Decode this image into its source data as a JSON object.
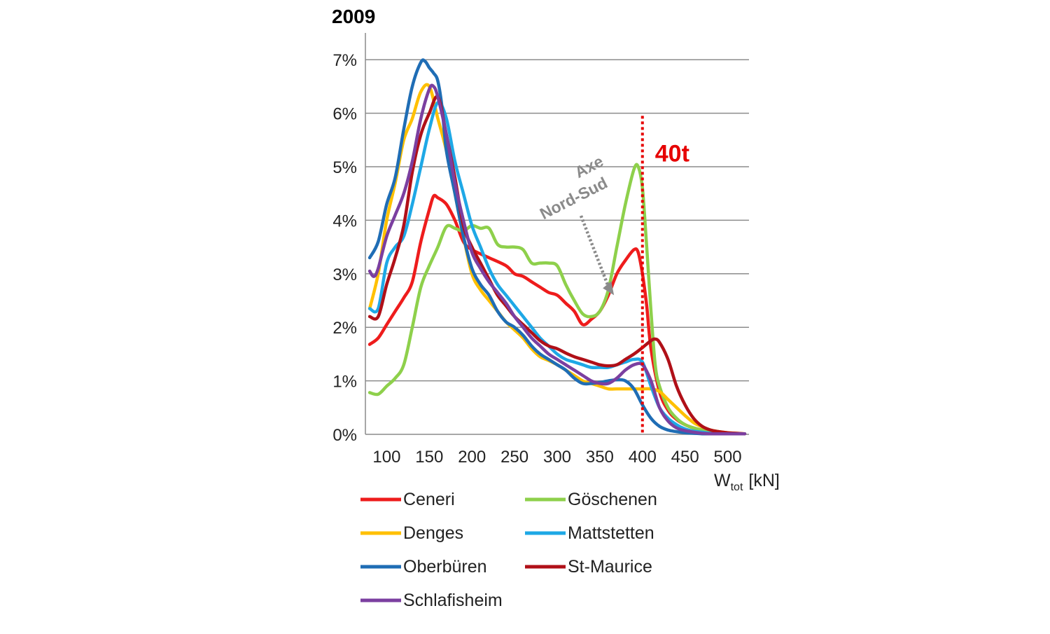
{
  "chart_data": {
    "type": "line",
    "title": "2009",
    "xlabel_main": "W",
    "xlabel_sub": "tot",
    "xlabel_unit": "[kN]",
    "xlim": [
      75,
      525
    ],
    "ylim": [
      0,
      7.5
    ],
    "y_ticks": [
      {
        "value": 0,
        "label": "0%"
      },
      {
        "value": 1,
        "label": "1%"
      },
      {
        "value": 2,
        "label": "2%"
      },
      {
        "value": 3,
        "label": "3%"
      },
      {
        "value": 4,
        "label": "4%"
      },
      {
        "value": 5,
        "label": "5%"
      },
      {
        "value": 6,
        "label": "6%"
      },
      {
        "value": 7,
        "label": "7%"
      }
    ],
    "x_ticks": [
      {
        "value": 100,
        "label": "100"
      },
      {
        "value": 150,
        "label": "150"
      },
      {
        "value": 200,
        "label": "200"
      },
      {
        "value": 250,
        "label": "250"
      },
      {
        "value": 300,
        "label": "300"
      },
      {
        "value": 350,
        "label": "350"
      },
      {
        "value": 400,
        "label": "400"
      },
      {
        "value": 450,
        "label": "450"
      },
      {
        "value": 500,
        "label": "500"
      }
    ],
    "grid": "horizontal",
    "legend_position": "bottom",
    "reference_line": {
      "x": 400,
      "label": "40t",
      "color": "#e60000"
    },
    "annotation": {
      "line1": "Axe",
      "line2": "Nord-Sud",
      "points_to": [
        365,
        2.6
      ]
    },
    "series": [
      {
        "name": "Ceneri",
        "color": "#ee1c1c",
        "x": [
          80,
          90,
          100,
          110,
          120,
          130,
          140,
          150,
          155,
          160,
          170,
          180,
          190,
          200,
          220,
          240,
          250,
          260,
          270,
          280,
          290,
          300,
          310,
          320,
          330,
          340,
          350,
          360,
          370,
          380,
          390,
          395,
          400,
          405,
          410,
          420,
          430,
          440,
          450,
          460,
          470,
          480,
          490,
          500,
          510,
          520
        ],
        "y": [
          1.68,
          1.8,
          2.05,
          2.3,
          2.55,
          2.85,
          3.6,
          4.2,
          4.45,
          4.42,
          4.3,
          4.0,
          3.6,
          3.45,
          3.3,
          3.15,
          3.0,
          2.95,
          2.85,
          2.75,
          2.65,
          2.6,
          2.45,
          2.3,
          2.05,
          2.15,
          2.3,
          2.6,
          3.0,
          3.25,
          3.45,
          3.4,
          3.0,
          2.4,
          1.6,
          0.8,
          0.45,
          0.28,
          0.18,
          0.12,
          0.08,
          0.05,
          0.03,
          0.02,
          0.01,
          0.01
        ]
      },
      {
        "name": "Göschenen",
        "color": "#8ed04b",
        "x": [
          80,
          90,
          100,
          110,
          120,
          130,
          140,
          150,
          160,
          170,
          180,
          190,
          200,
          210,
          220,
          230,
          240,
          250,
          260,
          270,
          280,
          290,
          300,
          310,
          320,
          330,
          340,
          350,
          360,
          370,
          380,
          390,
          395,
          400,
          405,
          410,
          415,
          420,
          430,
          440,
          450,
          460,
          470,
          480,
          490,
          500,
          510,
          520
        ],
        "y": [
          0.78,
          0.75,
          0.9,
          1.05,
          1.3,
          2.0,
          2.75,
          3.15,
          3.5,
          3.88,
          3.85,
          3.8,
          3.9,
          3.85,
          3.85,
          3.55,
          3.5,
          3.5,
          3.45,
          3.2,
          3.2,
          3.2,
          3.15,
          2.8,
          2.5,
          2.25,
          2.2,
          2.3,
          2.7,
          3.5,
          4.3,
          4.95,
          5.0,
          4.6,
          3.5,
          2.3,
          1.3,
          0.9,
          0.5,
          0.3,
          0.18,
          0.12,
          0.08,
          0.05,
          0.03,
          0.02,
          0.01,
          0.01
        ]
      },
      {
        "name": "Denges",
        "color": "#ffc000",
        "x": [
          80,
          90,
          100,
          110,
          120,
          130,
          140,
          150,
          160,
          170,
          180,
          190,
          200,
          210,
          220,
          230,
          240,
          250,
          260,
          270,
          280,
          290,
          300,
          310,
          320,
          330,
          340,
          350,
          360,
          370,
          380,
          390,
          400,
          410,
          420,
          430,
          440,
          450,
          460,
          470,
          480,
          490,
          500,
          510,
          520
        ],
        "y": [
          2.35,
          3.0,
          4.0,
          4.7,
          5.5,
          5.9,
          6.4,
          6.5,
          5.9,
          5.3,
          4.5,
          3.7,
          3.0,
          2.7,
          2.5,
          2.3,
          2.1,
          1.95,
          1.8,
          1.6,
          1.45,
          1.38,
          1.3,
          1.2,
          1.1,
          1.0,
          0.95,
          0.9,
          0.85,
          0.85,
          0.85,
          0.85,
          0.85,
          0.85,
          0.8,
          0.65,
          0.5,
          0.35,
          0.22,
          0.14,
          0.08,
          0.05,
          0.03,
          0.02,
          0.01
        ]
      },
      {
        "name": "Mattstetten",
        "color": "#1ea8e6",
        "x": [
          80,
          90,
          100,
          110,
          120,
          130,
          140,
          150,
          160,
          170,
          180,
          190,
          200,
          210,
          220,
          230,
          240,
          250,
          260,
          270,
          280,
          290,
          300,
          310,
          320,
          330,
          340,
          350,
          360,
          370,
          380,
          390,
          400,
          410,
          420,
          430,
          440,
          450,
          460,
          470,
          480,
          490,
          500,
          510,
          520
        ],
        "y": [
          2.35,
          2.35,
          3.2,
          3.5,
          3.7,
          4.3,
          5.0,
          5.7,
          6.2,
          5.9,
          5.1,
          4.5,
          3.9,
          3.5,
          3.1,
          2.8,
          2.6,
          2.4,
          2.2,
          2.0,
          1.8,
          1.65,
          1.5,
          1.4,
          1.35,
          1.3,
          1.25,
          1.25,
          1.25,
          1.3,
          1.35,
          1.4,
          1.35,
          0.9,
          0.5,
          0.3,
          0.18,
          0.1,
          0.06,
          0.04,
          0.02,
          0.01,
          0.01,
          0.01,
          0.01
        ]
      },
      {
        "name": "Oberbüren",
        "color": "#1f6db5",
        "x": [
          80,
          90,
          100,
          110,
          120,
          130,
          140,
          145,
          150,
          155,
          160,
          165,
          170,
          180,
          190,
          200,
          210,
          220,
          230,
          240,
          250,
          260,
          270,
          280,
          290,
          300,
          310,
          320,
          330,
          340,
          350,
          360,
          370,
          380,
          390,
          400,
          410,
          420,
          430,
          440,
          450,
          460,
          470,
          480,
          490,
          500,
          510,
          520
        ],
        "y": [
          3.3,
          3.6,
          4.3,
          4.8,
          5.7,
          6.5,
          6.95,
          6.97,
          6.85,
          6.75,
          6.6,
          6.1,
          5.3,
          4.5,
          3.7,
          3.1,
          2.8,
          2.6,
          2.3,
          2.1,
          2.0,
          1.85,
          1.65,
          1.5,
          1.4,
          1.3,
          1.2,
          1.05,
          0.95,
          0.95,
          0.97,
          1.0,
          1.02,
          1.0,
          0.85,
          0.55,
          0.3,
          0.15,
          0.08,
          0.05,
          0.03,
          0.02,
          0.01,
          0.01,
          0.01,
          0.01,
          0.01,
          0.01
        ]
      },
      {
        "name": "St-Maurice",
        "color": "#b01018",
        "x": [
          80,
          90,
          100,
          110,
          120,
          130,
          140,
          150,
          160,
          170,
          180,
          190,
          200,
          210,
          220,
          230,
          240,
          250,
          260,
          270,
          280,
          290,
          300,
          310,
          320,
          330,
          340,
          350,
          360,
          370,
          380,
          390,
          400,
          410,
          415,
          420,
          430,
          440,
          450,
          460,
          470,
          480,
          490,
          500,
          510,
          520
        ],
        "y": [
          2.2,
          2.2,
          2.8,
          3.3,
          3.9,
          4.9,
          5.6,
          6.0,
          6.3,
          5.6,
          4.8,
          3.9,
          3.5,
          3.2,
          2.9,
          2.6,
          2.4,
          2.2,
          2.05,
          1.9,
          1.75,
          1.65,
          1.6,
          1.52,
          1.45,
          1.4,
          1.35,
          1.3,
          1.28,
          1.3,
          1.4,
          1.5,
          1.62,
          1.75,
          1.78,
          1.72,
          1.4,
          0.9,
          0.55,
          0.3,
          0.15,
          0.08,
          0.05,
          0.03,
          0.02,
          0.01
        ]
      },
      {
        "name": "Schlafisheim",
        "color": "#7b3fa0",
        "x": [
          80,
          85,
          90,
          100,
          110,
          120,
          130,
          140,
          150,
          155,
          160,
          170,
          180,
          190,
          200,
          210,
          220,
          230,
          240,
          250,
          260,
          270,
          280,
          290,
          300,
          310,
          320,
          330,
          340,
          350,
          360,
          370,
          380,
          390,
          400,
          410,
          420,
          430,
          440,
          450,
          460,
          470,
          480,
          490,
          500,
          510,
          520
        ],
        "y": [
          3.05,
          2.95,
          3.1,
          3.7,
          4.1,
          4.5,
          5.1,
          5.9,
          6.45,
          6.5,
          6.3,
          5.6,
          4.7,
          4.0,
          3.4,
          3.1,
          2.85,
          2.65,
          2.45,
          2.2,
          2.0,
          1.8,
          1.65,
          1.5,
          1.4,
          1.3,
          1.2,
          1.1,
          1.0,
          0.95,
          0.95,
          1.05,
          1.2,
          1.3,
          1.3,
          1.0,
          0.5,
          0.25,
          0.12,
          0.07,
          0.04,
          0.02,
          0.01,
          0.01,
          0.01,
          0.01,
          0.01
        ]
      }
    ]
  }
}
